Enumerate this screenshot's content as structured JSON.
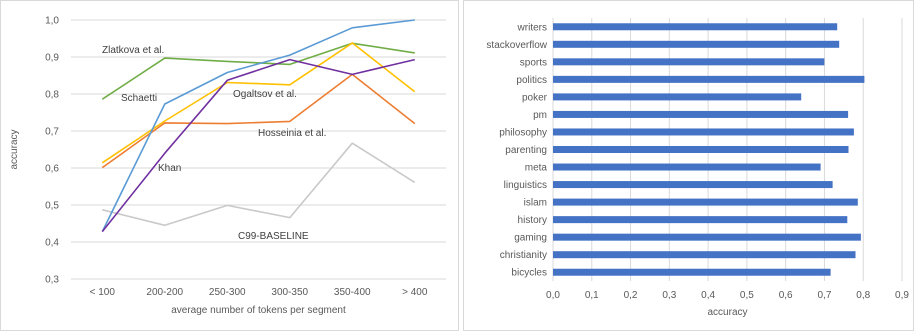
{
  "chart_data": [
    {
      "type": "line",
      "title": "",
      "xlabel": "average number of tokens per segment",
      "ylabel": "accuracy",
      "categories": [
        "< 100",
        "200-200",
        "250-300",
        "300-350",
        "350-400",
        "> 400"
      ],
      "ylim": [
        0.3,
        1.0
      ],
      "yticks": [
        "0,3",
        "0,4",
        "0,5",
        "0,6",
        "0,7",
        "0,8",
        "0,9",
        "1,0"
      ],
      "grid": true,
      "legend": "none",
      "series": [
        {
          "name": "Zlatkova et al.",
          "color": "#70ad47",
          "values": [
            0.786,
            0.897,
            0.888,
            0.88,
            0.937,
            0.911
          ]
        },
        {
          "name": "Schaetti",
          "color": "#5b9bd5",
          "values": [
            0.428,
            0.773,
            0.858,
            0.905,
            0.979,
            1.0
          ]
        },
        {
          "name": "Ogaltsov et al.",
          "color": "#ffc000",
          "values": [
            0.614,
            0.727,
            0.831,
            0.825,
            0.938,
            0.806
          ]
        },
        {
          "name": "Hosseinia et al.",
          "color": "#ed7d31",
          "values": [
            0.601,
            0.722,
            0.72,
            0.726,
            0.853,
            0.72
          ]
        },
        {
          "name": "Khan",
          "color": "#7030a0",
          "values": [
            0.428,
            0.64,
            0.837,
            0.893,
            0.853,
            0.893
          ]
        },
        {
          "name": "C99-BASELINE",
          "color": "#c9c9c9",
          "values": [
            0.487,
            0.445,
            0.499,
            0.466,
            0.667,
            0.561
          ]
        }
      ]
    },
    {
      "type": "bar",
      "orientation": "horizontal",
      "title": "",
      "xlabel": "accuracy",
      "xlim": [
        0.0,
        0.9
      ],
      "xticks": [
        "0,0",
        "0,1",
        "0,2",
        "0,3",
        "0,4",
        "0,5",
        "0,6",
        "0,7",
        "0,8",
        "0,9"
      ],
      "grid": true,
      "color": "#4472c4",
      "categories": [
        "writers",
        "stackoverflow",
        "sports",
        "politics",
        "poker",
        "pm",
        "philosophy",
        "parenting",
        "meta",
        "linguistics",
        "islam",
        "history",
        "gaming",
        "christianity",
        "bicycles"
      ],
      "values": [
        0.733,
        0.738,
        0.7,
        0.803,
        0.64,
        0.761,
        0.776,
        0.762,
        0.69,
        0.721,
        0.786,
        0.759,
        0.794,
        0.78,
        0.716
      ]
    }
  ]
}
